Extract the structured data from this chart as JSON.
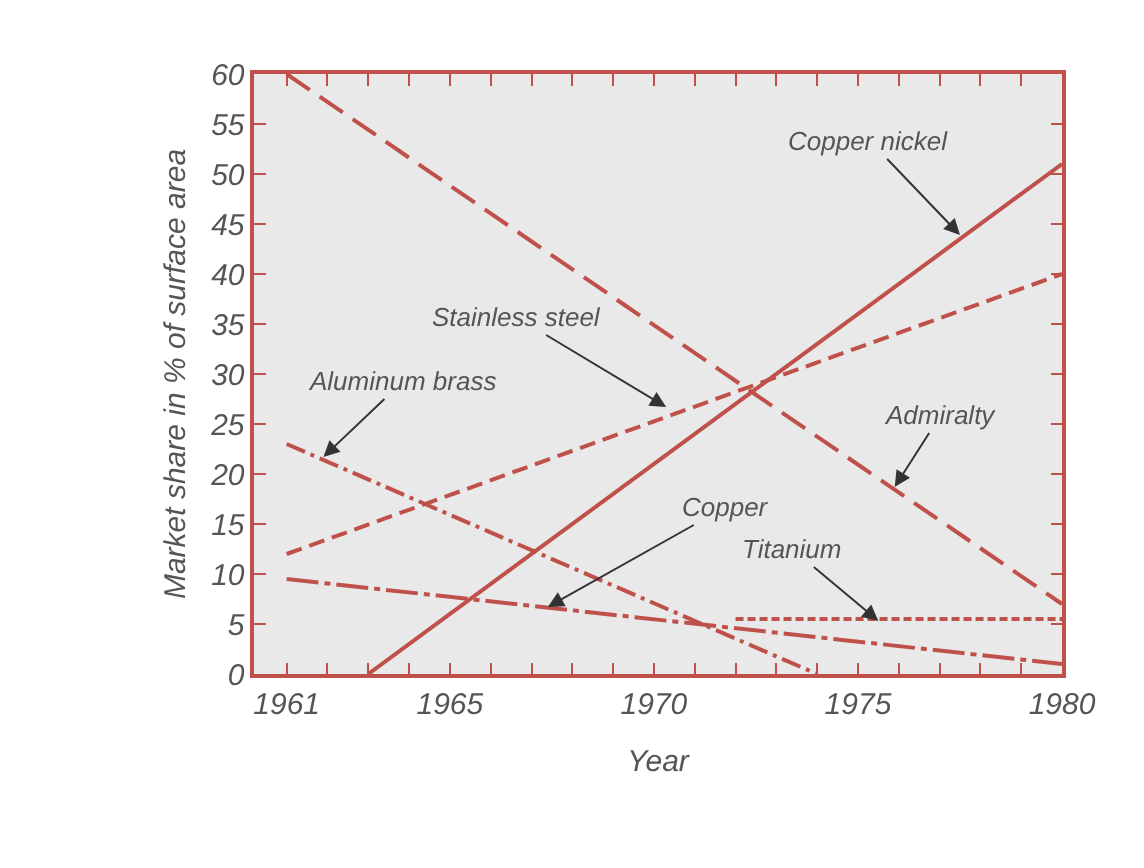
{
  "chart_data": {
    "type": "line",
    "xlabel": "Year",
    "ylabel": "Market share in % of surface area",
    "xlim": [
      1960.2,
      1980
    ],
    "ylim": [
      0,
      60
    ],
    "xticks": [
      1961,
      {
        "value": 1962,
        "label": null
      },
      {
        "value": 1963,
        "label": null
      },
      {
        "value": 1964,
        "label": null
      },
      1965,
      {
        "value": 1966,
        "label": null
      },
      {
        "value": 1967,
        "label": null
      },
      {
        "value": 1968,
        "label": null
      },
      {
        "value": 1969,
        "label": null
      },
      1970,
      {
        "value": 1971,
        "label": null
      },
      {
        "value": 1972,
        "label": null
      },
      {
        "value": 1973,
        "label": null
      },
      {
        "value": 1974,
        "label": null
      },
      1975,
      {
        "value": 1976,
        "label": null
      },
      {
        "value": 1977,
        "label": null
      },
      {
        "value": 1978,
        "label": null
      },
      {
        "value": 1979,
        "label": null
      },
      1980
    ],
    "yticks": [
      0,
      5,
      10,
      15,
      20,
      25,
      30,
      35,
      40,
      45,
      50,
      55,
      60
    ],
    "grid": false,
    "marker": "none",
    "series": [
      {
        "color": "#c0504a",
        "line_style": "longdashed",
        "x": [
          1961,
          1980
        ],
        "values": [
          60,
          7
        ]
      },
      {
        "color": "#c0504a",
        "line_style": "solid",
        "x": [
          1963,
          1980
        ],
        "values": [
          0,
          51
        ]
      },
      {
        "color": "#c0504a",
        "line_style": "dashed",
        "x": [
          1961,
          1980
        ],
        "values": [
          12,
          40
        ]
      },
      {
        "color": "#c0504a",
        "line_style": "dashdot",
        "x": [
          1961,
          1974
        ],
        "values": [
          23,
          0
        ]
      },
      {
        "color": "#c0504a",
        "line_style": "longdashdot",
        "x": [
          1961,
          1980
        ],
        "values": [
          9.5,
          1
        ]
      },
      {
        "color": "#c0504a",
        "line_style": "dotted",
        "x": [
          1972,
          1980
        ],
        "values": [
          5.5,
          5.5
        ]
      }
    ],
    "annotations": [
      {
        "text": "Copper nickel",
        "x": 1977.5,
        "y": 43.9
      },
      {
        "text": "Stainless steel",
        "x": 1970.3,
        "y": 26.7
      },
      {
        "text": "Aluminum brass",
        "x": 1961.9,
        "y": 21.7
      },
      {
        "text": "Admiralty",
        "x": 1975.9,
        "y": 18.7
      },
      {
        "text": "Copper",
        "x": 1967.4,
        "y": 6.7
      },
      {
        "text": "Titanium",
        "x": 1975.5,
        "y": 5.3
      }
    ]
  }
}
